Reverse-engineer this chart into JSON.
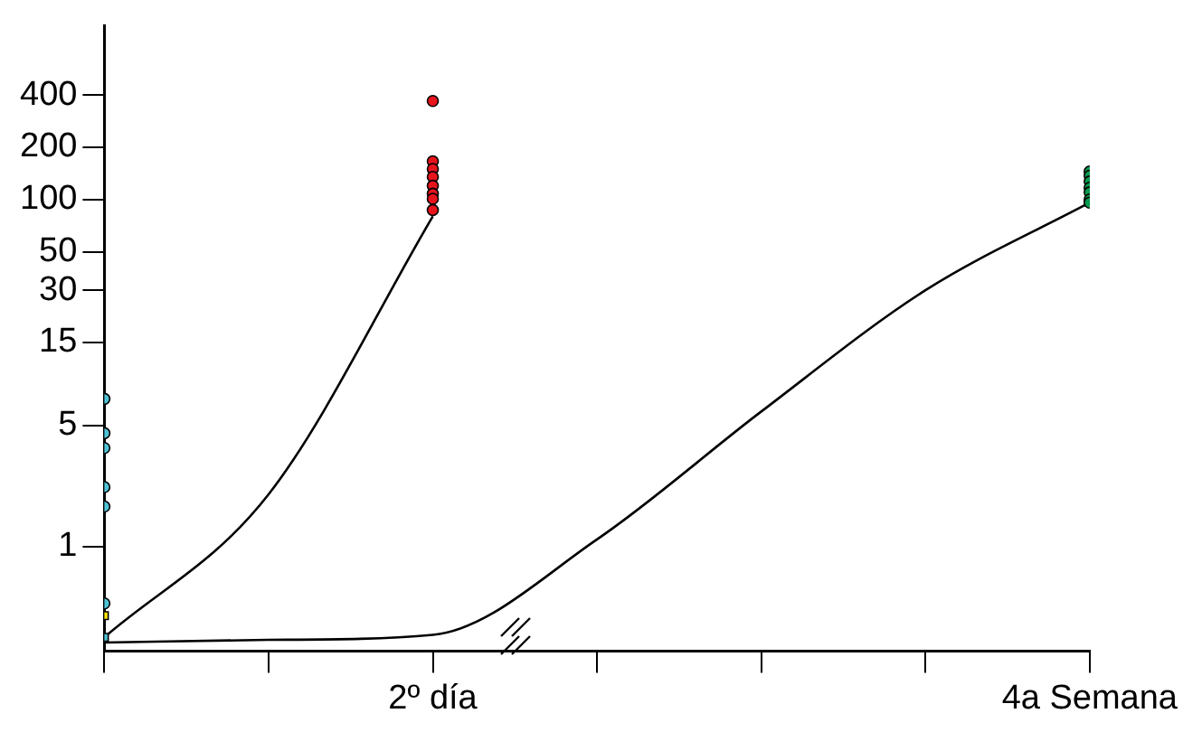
{
  "chart_data": {
    "type": "scatter",
    "log": "y",
    "grid": false,
    "legend": false,
    "marker": "circle",
    "categories": [
      null,
      null,
      "2º día",
      null,
      null,
      null,
      "4a Semana"
    ],
    "ylim": [
      0.25,
      1000
    ],
    "yticks": [
      1,
      5,
      15,
      30,
      50,
      100,
      200,
      400
    ],
    "series": [
      {
        "type": "line",
        "marker": "none",
        "color": "#000000",
        "values": [
          0.3,
          2,
          80,
          null,
          null,
          null,
          null
        ]
      },
      {
        "type": "line",
        "marker": "none",
        "color": "#000000",
        "values": [
          0.28,
          0.29,
          0.31,
          1.1,
          6,
          30,
          96
        ]
      },
      {
        "color": "#e8141c",
        "x": [
          "2º día",
          "2º día",
          "2º día",
          "2º día",
          "2º día",
          "2º día",
          "2º día",
          "2º día"
        ],
        "values": [
          370,
          166,
          150,
          135,
          120,
          108,
          101,
          87
        ]
      },
      {
        "color": "#009b4e",
        "x": [
          "4a Semana",
          "4a Semana",
          "4a Semana",
          "4a Semana",
          "4a Semana",
          "4a Semana",
          "4a Semana"
        ],
        "values": [
          145,
          137,
          127,
          117,
          110,
          100,
          96
        ]
      },
      {
        "color": "#4fc3d6",
        "values": [
          7.1,
          null,
          null,
          null,
          null,
          null,
          null
        ]
      },
      {
        "color": "#4fc3d6",
        "values": [
          4.5,
          null,
          null,
          null,
          null,
          null,
          null
        ]
      },
      {
        "color": "#4fc3d6",
        "values": [
          3.7,
          null,
          null,
          null,
          null,
          null,
          null
        ]
      },
      {
        "color": "#4fc3d6",
        "values": [
          2.2,
          null,
          null,
          null,
          null,
          null,
          null
        ]
      },
      {
        "color": "#4fc3d6",
        "values": [
          1.7,
          null,
          null,
          null,
          null,
          null,
          null
        ]
      },
      {
        "color": "#4fc3d6",
        "values": [
          0.47,
          null,
          null,
          null,
          null,
          null,
          null
        ]
      },
      {
        "color": "#ffe500",
        "marker": "square",
        "values": [
          0.4,
          null,
          null,
          null,
          null,
          null,
          null
        ]
      },
      {
        "color": "#4fc3d6",
        "marker": "square",
        "values": [
          0.3,
          null,
          null,
          null,
          null,
          null,
          null
        ]
      }
    ]
  }
}
